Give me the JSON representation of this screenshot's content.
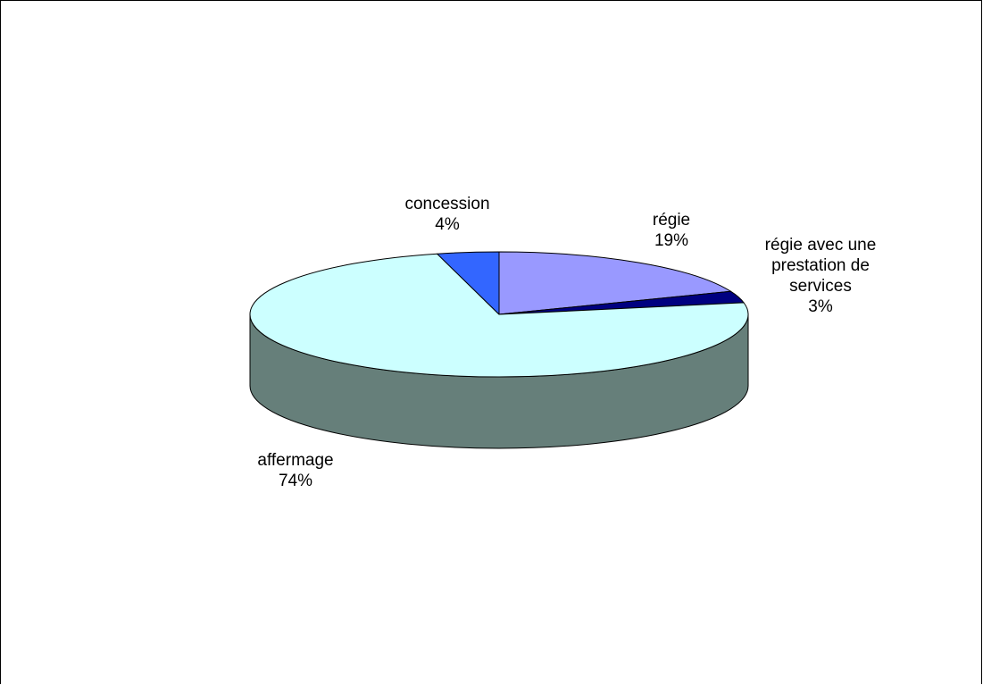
{
  "chart_data": {
    "type": "pie",
    "three_d": true,
    "title": "",
    "legend": "none",
    "slices": [
      {
        "label": "régie",
        "value": 19,
        "value_label": "19%",
        "color": "#9999FF"
      },
      {
        "label": "régie avec une prestation de services",
        "label_lines": [
          "régie avec une",
          "prestation de",
          "services"
        ],
        "value": 3,
        "value_label": "3%",
        "color": "#000080"
      },
      {
        "label": "affermage",
        "value": 74,
        "value_label": "74%",
        "color": "#CCFFFF"
      },
      {
        "label": "concession",
        "value": 4,
        "value_label": "4%",
        "color": "#3366FF"
      }
    ],
    "side_color": "#667F7A"
  }
}
